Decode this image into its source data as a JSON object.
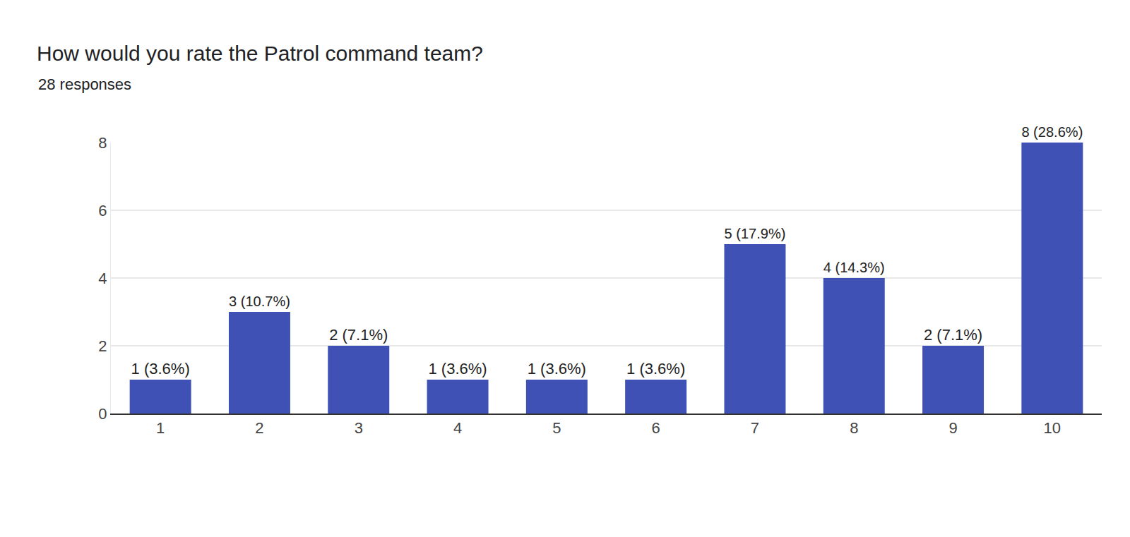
{
  "chart_data": {
    "type": "bar",
    "title": "How would you rate the Patrol command team?",
    "subtitle": "28 responses",
    "categories": [
      "1",
      "2",
      "3",
      "4",
      "5",
      "6",
      "7",
      "8",
      "9",
      "10"
    ],
    "values": [
      1,
      3,
      2,
      1,
      1,
      1,
      5,
      4,
      2,
      8
    ],
    "value_labels": [
      "1 (3.6%)",
      "3 (10.7%)",
      "2 (7.1%)",
      "1 (3.6%)",
      "1 (3.6%)",
      "1 (3.6%)",
      "5 (17.9%)",
      "4 (14.3%)",
      "2 (7.1%)",
      "8 (28.6%)"
    ],
    "color": "#3f51b5",
    "ylim": [
      0,
      8
    ],
    "yticks": [
      0,
      2,
      4,
      6,
      8
    ],
    "grid": true,
    "data_labels": true
  }
}
